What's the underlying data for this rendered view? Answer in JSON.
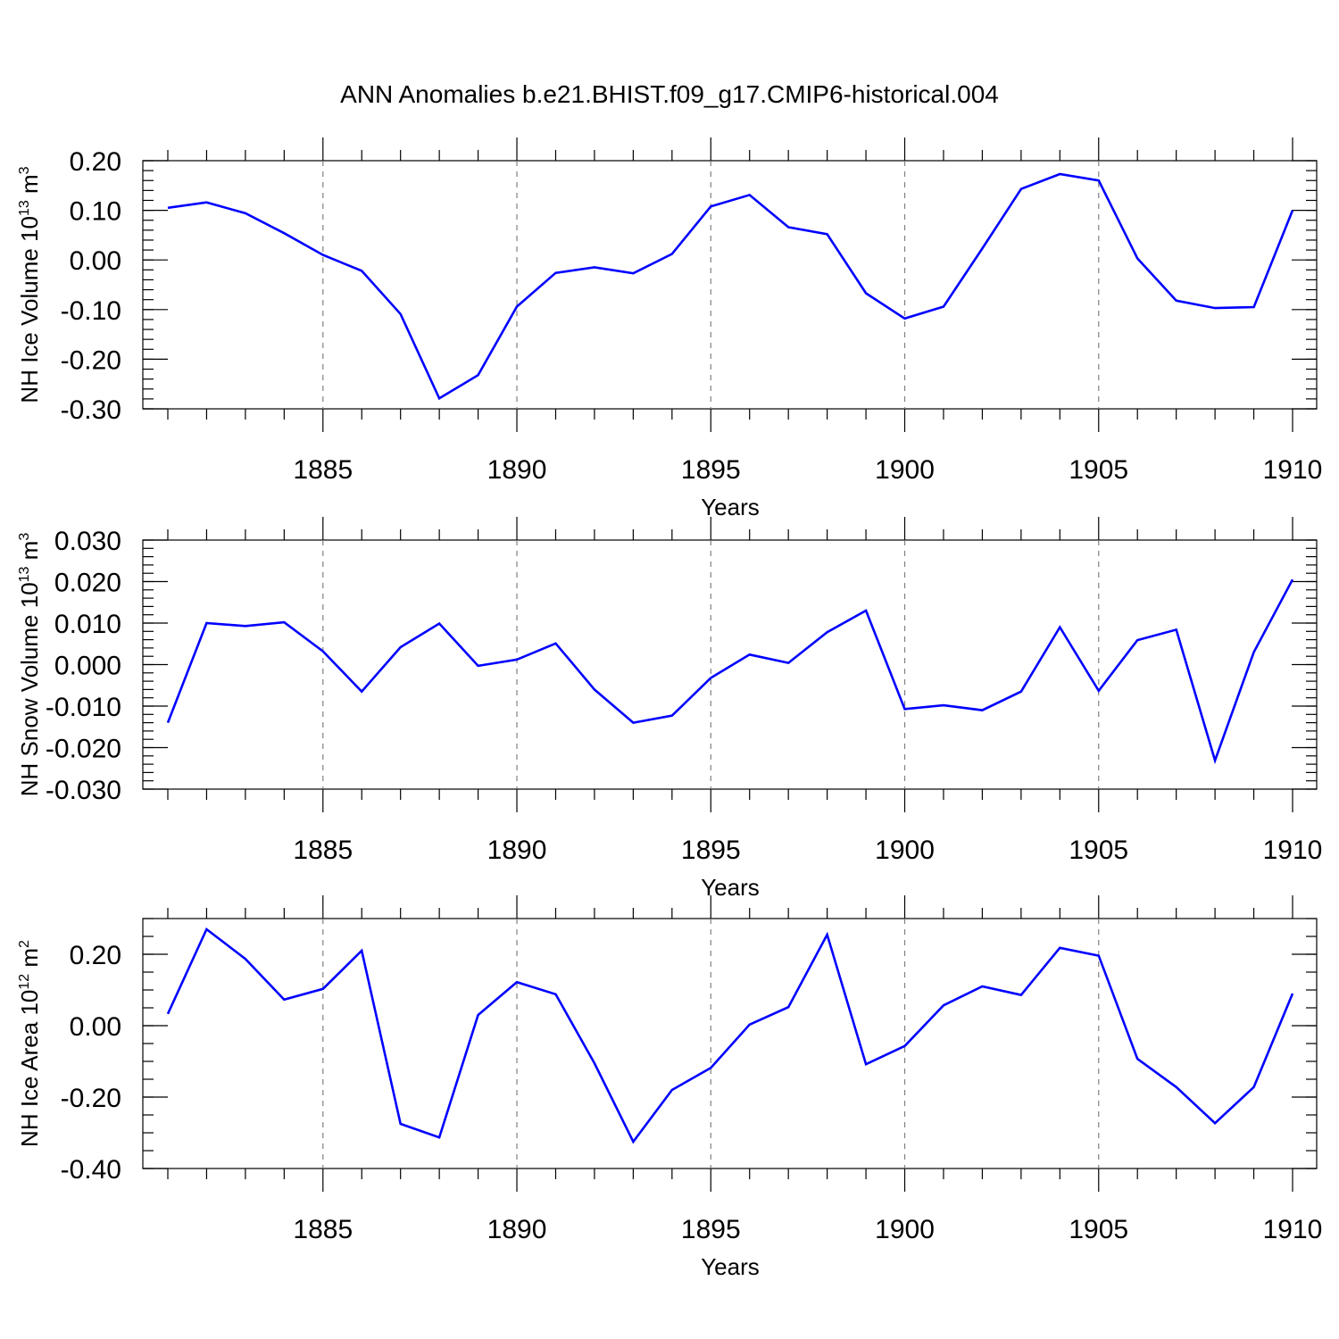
{
  "title": "ANN Anomalies b.e21.BHIST.f09_g17.CMIP6-historical.004",
  "colors": {
    "line": "#0000ff",
    "axis": "#000000",
    "grid": "#808080"
  },
  "chart_data": [
    {
      "type": "line",
      "ylabel": "NH Ice Volume 10",
      "ylabel_exp": "13",
      "ylabel_unit": " m",
      "ylabel_unit_exp": "3",
      "xlabel": "Years",
      "xlim": [
        1881,
        1910
      ],
      "ylim": [
        -0.3,
        0.2
      ],
      "yticks": [
        0.2,
        0.1,
        0.0,
        -0.1,
        -0.2,
        -0.3
      ],
      "ytick_labels": [
        "0.20",
        "0.10",
        "0.00",
        "-0.10",
        "-0.20",
        "-0.30"
      ],
      "yminor": 0.02,
      "xticks": [
        1885,
        1890,
        1895,
        1900,
        1905,
        1910
      ],
      "xtick_labels": [
        "1885",
        "1890",
        "1895",
        "1900",
        "1905",
        "1910"
      ],
      "grid": "vertical dashed at major x ticks",
      "series": [
        {
          "x": [
            1881,
            1882,
            1883,
            1884,
            1885,
            1886,
            1887,
            1888,
            1889,
            1890,
            1891,
            1892,
            1893,
            1894,
            1895,
            1896,
            1897,
            1898,
            1899,
            1900,
            1901,
            1902,
            1903,
            1904,
            1905,
            1906,
            1907,
            1908,
            1909,
            1910
          ],
          "values": [
            0.105,
            0.116,
            0.094,
            0.054,
            0.01,
            -0.022,
            -0.109,
            -0.279,
            -0.232,
            -0.094,
            -0.026,
            -0.015,
            -0.027,
            0.012,
            0.108,
            0.131,
            0.066,
            0.052,
            -0.067,
            -0.118,
            -0.094,
            0.023,
            0.143,
            0.173,
            0.16,
            0.003,
            -0.082,
            -0.097,
            -0.095,
            0.1
          ]
        }
      ]
    },
    {
      "type": "line",
      "ylabel": "NH Snow Volume 10",
      "ylabel_exp": "13",
      "ylabel_unit": " m",
      "ylabel_unit_exp": "3",
      "xlabel": "Years",
      "xlim": [
        1881,
        1910
      ],
      "ylim": [
        -0.03,
        0.03
      ],
      "yticks": [
        0.03,
        0.02,
        0.01,
        0.0,
        -0.01,
        -0.02,
        -0.03
      ],
      "ytick_labels": [
        "0.030",
        "0.020",
        "0.010",
        "0.000",
        "-0.010",
        "-0.020",
        "-0.030"
      ],
      "yminor": 0.002,
      "xticks": [
        1885,
        1890,
        1895,
        1900,
        1905,
        1910
      ],
      "xtick_labels": [
        "1885",
        "1890",
        "1895",
        "1900",
        "1905",
        "1910"
      ],
      "grid": "vertical dashed at major x ticks",
      "series": [
        {
          "x": [
            1881,
            1882,
            1883,
            1884,
            1885,
            1886,
            1887,
            1888,
            1889,
            1890,
            1891,
            1892,
            1893,
            1894,
            1895,
            1896,
            1897,
            1898,
            1899,
            1900,
            1901,
            1902,
            1903,
            1904,
            1905,
            1906,
            1907,
            1908,
            1909,
            1910
          ],
          "values": [
            -0.014,
            0.01,
            0.0093,
            0.0102,
            0.0032,
            -0.0065,
            0.0042,
            0.0099,
            -0.0003,
            0.0012,
            0.0051,
            -0.006,
            -0.014,
            -0.0123,
            -0.0032,
            0.0024,
            0.0004,
            0.0078,
            0.013,
            -0.0107,
            -0.0098,
            -0.011,
            -0.0065,
            0.009,
            -0.0063,
            0.0059,
            0.0084,
            -0.0231,
            0.003,
            0.0205
          ]
        }
      ]
    },
    {
      "type": "line",
      "ylabel": "NH Ice Area 10",
      "ylabel_exp": "12",
      "ylabel_unit": " m",
      "ylabel_unit_exp": "2",
      "xlabel": "Years",
      "xlim": [
        1881,
        1910
      ],
      "ylim": [
        -0.4,
        0.3
      ],
      "yticks": [
        0.2,
        0.0,
        -0.2,
        -0.4
      ],
      "ytick_labels": [
        "0.20",
        "0.00",
        "-0.20",
        "-0.40"
      ],
      "yminor": 0.05,
      "xticks": [
        1885,
        1890,
        1895,
        1900,
        1905,
        1910
      ],
      "xtick_labels": [
        "1885",
        "1890",
        "1895",
        "1900",
        "1905",
        "1910"
      ],
      "grid": "vertical dashed at major x ticks",
      "series": [
        {
          "x": [
            1881,
            1882,
            1883,
            1884,
            1885,
            1886,
            1887,
            1888,
            1889,
            1890,
            1891,
            1892,
            1893,
            1894,
            1895,
            1896,
            1897,
            1898,
            1899,
            1900,
            1901,
            1902,
            1903,
            1904,
            1905,
            1906,
            1907,
            1908,
            1909,
            1910
          ],
          "values": [
            0.033,
            0.27,
            0.187,
            0.073,
            0.103,
            0.21,
            -0.275,
            -0.313,
            0.03,
            0.122,
            0.088,
            -0.105,
            -0.325,
            -0.18,
            -0.118,
            0.003,
            0.052,
            0.255,
            -0.108,
            -0.057,
            0.057,
            0.11,
            0.086,
            0.218,
            0.196,
            -0.093,
            -0.172,
            -0.273,
            -0.172,
            0.09
          ]
        }
      ]
    }
  ]
}
